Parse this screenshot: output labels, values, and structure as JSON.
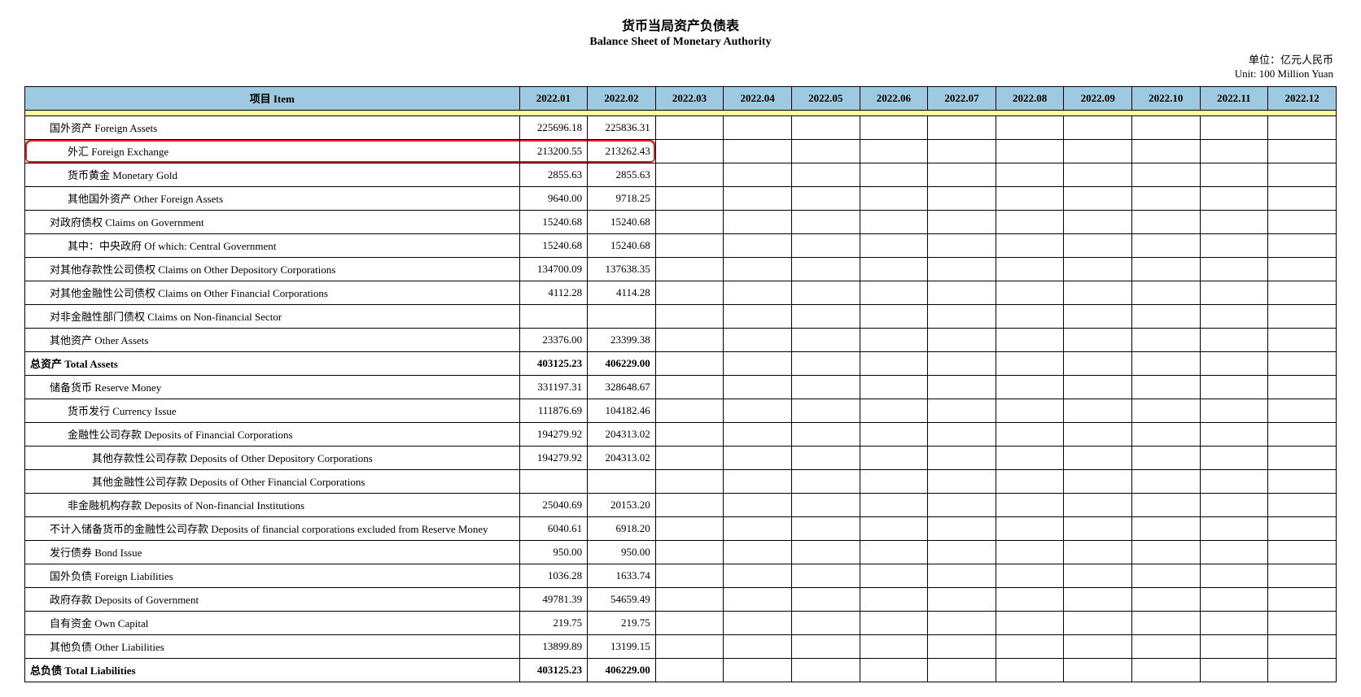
{
  "title_cn": "货币当局资产负债表",
  "title_en": "Balance Sheet of  Monetary Authority",
  "unit_cn": "单位：亿元人民币",
  "unit_en": "Unit: 100 Million Yuan",
  "header": {
    "item": "项目  Item",
    "months": [
      "2022.01",
      "2022.02",
      "2022.03",
      "2022.04",
      "2022.05",
      "2022.06",
      "2022.07",
      "2022.08",
      "2022.09",
      "2022.10",
      "2022.11",
      "2022.12"
    ]
  },
  "highlight_color": "#e02020",
  "header_bg": "#9ecae1",
  "spacer_bg": "#ffff99",
  "rows": [
    {
      "label": "国外资产  Foreign Assets",
      "indent": 1,
      "bold": false,
      "vals": [
        "225696.18",
        "225836.31",
        "",
        "",
        "",
        "",
        "",
        "",
        "",
        "",
        "",
        ""
      ],
      "hl": false
    },
    {
      "label": "外汇  Foreign Exchange",
      "indent": 2,
      "bold": false,
      "vals": [
        "213200.55",
        "213262.43",
        "",
        "",
        "",
        "",
        "",
        "",
        "",
        "",
        "",
        ""
      ],
      "hl": true
    },
    {
      "label": "货币黄金  Monetary Gold",
      "indent": 2,
      "bold": false,
      "vals": [
        "2855.63",
        "2855.63",
        "",
        "",
        "",
        "",
        "",
        "",
        "",
        "",
        "",
        ""
      ],
      "hl": false
    },
    {
      "label": "其他国外资产  Other Foreign Assets",
      "indent": 2,
      "bold": false,
      "vals": [
        "9640.00",
        "9718.25",
        "",
        "",
        "",
        "",
        "",
        "",
        "",
        "",
        "",
        ""
      ],
      "hl": false
    },
    {
      "label": "对政府债权  Claims on Government",
      "indent": 1,
      "bold": false,
      "vals": [
        "15240.68",
        "15240.68",
        "",
        "",
        "",
        "",
        "",
        "",
        "",
        "",
        "",
        ""
      ],
      "hl": false
    },
    {
      "label": "其中：中央政府  Of which: Central Government",
      "indent": 2,
      "bold": false,
      "vals": [
        "15240.68",
        "15240.68",
        "",
        "",
        "",
        "",
        "",
        "",
        "",
        "",
        "",
        ""
      ],
      "hl": false
    },
    {
      "label": "对其他存款性公司债权  Claims on Other Depository Corporations",
      "indent": 1,
      "bold": false,
      "vals": [
        "134700.09",
        "137638.35",
        "",
        "",
        "",
        "",
        "",
        "",
        "",
        "",
        "",
        ""
      ],
      "hl": false
    },
    {
      "label": "对其他金融性公司债权  Claims on Other Financial Corporations",
      "indent": 1,
      "bold": false,
      "vals": [
        "4112.28",
        "4114.28",
        "",
        "",
        "",
        "",
        "",
        "",
        "",
        "",
        "",
        ""
      ],
      "hl": false
    },
    {
      "label": "对非金融性部门债权  Claims on Non-financial Sector",
      "indent": 1,
      "bold": false,
      "vals": [
        "",
        "",
        "",
        "",
        "",
        "",
        "",
        "",
        "",
        "",
        "",
        ""
      ],
      "hl": false
    },
    {
      "label": "其他资产  Other Assets",
      "indent": 1,
      "bold": false,
      "vals": [
        "23376.00",
        "23399.38",
        "",
        "",
        "",
        "",
        "",
        "",
        "",
        "",
        "",
        ""
      ],
      "hl": false
    },
    {
      "label": "总资产  Total Assets",
      "indent": 0,
      "bold": true,
      "vals": [
        "403125.23",
        "406229.00",
        "",
        "",
        "",
        "",
        "",
        "",
        "",
        "",
        "",
        ""
      ],
      "hl": false
    },
    {
      "label": "储备货币  Reserve Money",
      "indent": 1,
      "bold": false,
      "vals": [
        "331197.31",
        "328648.67",
        "",
        "",
        "",
        "",
        "",
        "",
        "",
        "",
        "",
        ""
      ],
      "hl": false
    },
    {
      "label": "货币发行  Currency Issue",
      "indent": 2,
      "bold": false,
      "vals": [
        "111876.69",
        "104182.46",
        "",
        "",
        "",
        "",
        "",
        "",
        "",
        "",
        "",
        ""
      ],
      "hl": false
    },
    {
      "label": "金融性公司存款  Deposits of  Financial Corporations",
      "indent": 2,
      "bold": false,
      "vals": [
        "194279.92",
        "204313.02",
        "",
        "",
        "",
        "",
        "",
        "",
        "",
        "",
        "",
        ""
      ],
      "hl": false
    },
    {
      "label": "其他存款性公司存款  Deposits of  Other Depository Corporations",
      "indent": 3,
      "bold": false,
      "vals": [
        "194279.92",
        "204313.02",
        "",
        "",
        "",
        "",
        "",
        "",
        "",
        "",
        "",
        ""
      ],
      "hl": false
    },
    {
      "label": "其他金融性公司存款  Deposits of  Other Financial Corporations",
      "indent": 3,
      "bold": false,
      "vals": [
        "",
        "",
        "",
        "",
        "",
        "",
        "",
        "",
        "",
        "",
        "",
        ""
      ],
      "hl": false
    },
    {
      "label": "非金融机构存款  Deposits of  Non-financial Institutions",
      "indent": 2,
      "bold": false,
      "vals": [
        "25040.69",
        "20153.20",
        "",
        "",
        "",
        "",
        "",
        "",
        "",
        "",
        "",
        ""
      ],
      "hl": false
    },
    {
      "label": "不计入储备货币的金融性公司存款  Deposits of financial corporations excluded from Reserve Money",
      "indent": 1,
      "bold": false,
      "vals": [
        "6040.61",
        "6918.20",
        "",
        "",
        "",
        "",
        "",
        "",
        "",
        "",
        "",
        ""
      ],
      "hl": false
    },
    {
      "label": "发行债券  Bond Issue",
      "indent": 1,
      "bold": false,
      "vals": [
        "950.00",
        "950.00",
        "",
        "",
        "",
        "",
        "",
        "",
        "",
        "",
        "",
        ""
      ],
      "hl": false
    },
    {
      "label": "国外负债  Foreign Liabilities",
      "indent": 1,
      "bold": false,
      "vals": [
        "1036.28",
        "1633.74",
        "",
        "",
        "",
        "",
        "",
        "",
        "",
        "",
        "",
        ""
      ],
      "hl": false
    },
    {
      "label": "政府存款  Deposits of Government",
      "indent": 1,
      "bold": false,
      "vals": [
        "49781.39",
        "54659.49",
        "",
        "",
        "",
        "",
        "",
        "",
        "",
        "",
        "",
        ""
      ],
      "hl": false
    },
    {
      "label": "自有资金  Own Capital",
      "indent": 1,
      "bold": false,
      "vals": [
        "219.75",
        "219.75",
        "",
        "",
        "",
        "",
        "",
        "",
        "",
        "",
        "",
        ""
      ],
      "hl": false
    },
    {
      "label": "其他负债  Other Liabilities",
      "indent": 1,
      "bold": false,
      "vals": [
        "13899.89",
        "13199.15",
        "",
        "",
        "",
        "",
        "",
        "",
        "",
        "",
        "",
        ""
      ],
      "hl": false
    },
    {
      "label": "总负债  Total  Liabilities",
      "indent": 0,
      "bold": true,
      "vals": [
        "403125.23",
        "406229.00",
        "",
        "",
        "",
        "",
        "",
        "",
        "",
        "",
        "",
        ""
      ],
      "hl": false
    }
  ]
}
